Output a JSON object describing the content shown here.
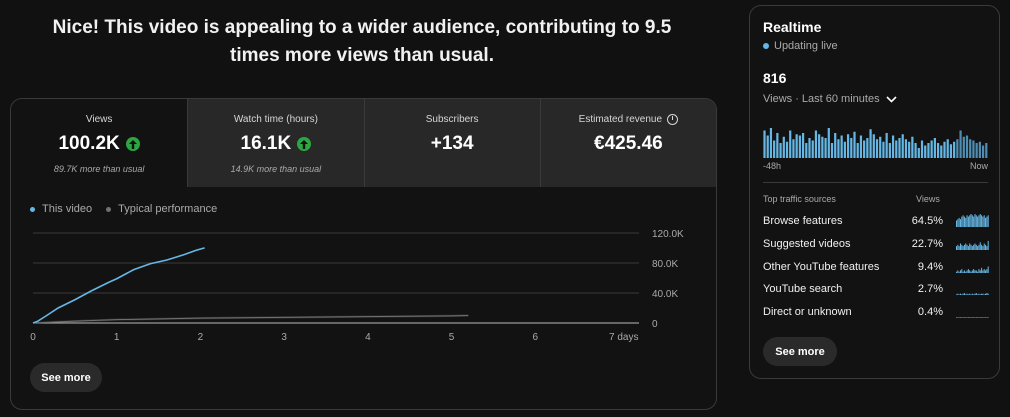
{
  "headline": "Nice! This video is appealing to a wider audience, contributing to 9.5 times more views than usual.",
  "metrics": [
    {
      "label": "Views",
      "value": "100.2K",
      "sub": "89.7K more than usual",
      "trend": "up"
    },
    {
      "label": "Watch time (hours)",
      "value": "16.1K",
      "sub": "14.9K more than usual",
      "trend": "up"
    },
    {
      "label": "Subscribers",
      "value": "+134",
      "sub": ""
    },
    {
      "label": "Estimated revenue",
      "value": "€425.46",
      "sub": "",
      "icon": "clock-icon"
    }
  ],
  "legend": {
    "this_video": "This video",
    "typical": "Typical performance"
  },
  "colors": {
    "this_video": "#65b8e6",
    "typical": "#717171",
    "up": "#2ba640",
    "background": "#111111"
  },
  "chart_data": {
    "type": "line",
    "x_ticks": [
      "0",
      "1",
      "2",
      "3",
      "4",
      "5",
      "6",
      "7 days"
    ],
    "y_ticks": [
      "0",
      "40.0K",
      "80.0K",
      "120.0K"
    ],
    "xlim": [
      0,
      7
    ],
    "ylim": [
      0,
      120000
    ],
    "series": [
      {
        "name": "This video",
        "x": [
          0,
          0.05,
          0.15,
          0.3,
          0.5,
          0.7,
          0.9,
          1.0,
          1.1,
          1.2,
          1.4,
          1.6,
          1.8,
          1.95,
          2.05
        ],
        "y": [
          0,
          2000,
          9000,
          20000,
          31000,
          43000,
          54000,
          59000,
          65000,
          71000,
          79000,
          84000,
          91000,
          97000,
          100200
        ]
      },
      {
        "name": "Typical performance",
        "x": [
          0,
          0.5,
          1,
          2,
          3,
          4,
          5,
          5.2
        ],
        "y": [
          0,
          2500,
          4500,
          6500,
          7500,
          8500,
          9500,
          10000
        ],
        "band": 3000
      }
    ],
    "grid": true
  },
  "see_more": "See more",
  "realtime": {
    "title": "Realtime",
    "status": "Updating live",
    "count": "816",
    "period": "Views · Last 60 minutes",
    "bars": [
      22,
      18,
      24,
      14,
      20,
      12,
      17,
      13,
      22,
      15,
      19,
      18,
      20,
      12,
      16,
      14,
      22,
      19,
      17,
      16,
      24,
      12,
      20,
      15,
      18,
      13,
      19,
      16,
      21,
      12,
      18,
      14,
      16,
      23,
      19,
      15,
      17,
      13,
      20,
      12,
      18,
      14,
      16,
      19,
      15,
      13,
      17,
      12,
      8,
      14,
      10,
      12,
      14,
      16,
      12,
      10,
      13,
      15,
      11,
      13,
      15,
      22,
      17,
      18,
      15,
      14,
      12,
      13,
      10,
      12
    ],
    "axis_start": "-48h",
    "axis_end": "Now",
    "col_sources": "Top traffic sources",
    "col_views": "Views",
    "sources": [
      {
        "name": "Browse features",
        "pct": "64.5%",
        "spark": [
          5,
          6,
          7,
          6,
          8,
          9,
          8,
          7,
          9,
          8,
          9,
          10,
          9,
          8,
          10,
          9,
          8,
          9,
          10,
          9,
          8,
          9,
          7,
          8,
          9
        ]
      },
      {
        "name": "Suggested videos",
        "pct": "22.7%",
        "spark": [
          3,
          4,
          3,
          5,
          4,
          3,
          4,
          5,
          4,
          3,
          5,
          4,
          3,
          4,
          5,
          4,
          3,
          4,
          6,
          4,
          3,
          5,
          4,
          3,
          7
        ]
      },
      {
        "name": "Other YouTube features",
        "pct": "9.4%",
        "spark": [
          1,
          2,
          1,
          2,
          3,
          1,
          2,
          1,
          2,
          3,
          2,
          1,
          2,
          3,
          2,
          2,
          1,
          3,
          2,
          4,
          2,
          3,
          2,
          3,
          5
        ]
      },
      {
        "name": "YouTube search",
        "pct": "2.7%",
        "spark": [
          0.5,
          1,
          0.5,
          1,
          0.5,
          1,
          1.5,
          0.5,
          1,
          0.5,
          1,
          0.5,
          1,
          0.5,
          1,
          1.5,
          0.5,
          1,
          0.5,
          1,
          1,
          0.5,
          1,
          1.5,
          1
        ]
      },
      {
        "name": "Direct or unknown",
        "pct": "0.4%",
        "spark": [
          0.3,
          0.3,
          0.5,
          0.3,
          0.3,
          0.5,
          0.3,
          0.3,
          0.3,
          0.5,
          0.3,
          0.3,
          0.5,
          0.3,
          0.3,
          0.3,
          0.5,
          0.3,
          0.3,
          0.3,
          0.5,
          0.3,
          0.3,
          0.3,
          0.3
        ]
      }
    ]
  }
}
